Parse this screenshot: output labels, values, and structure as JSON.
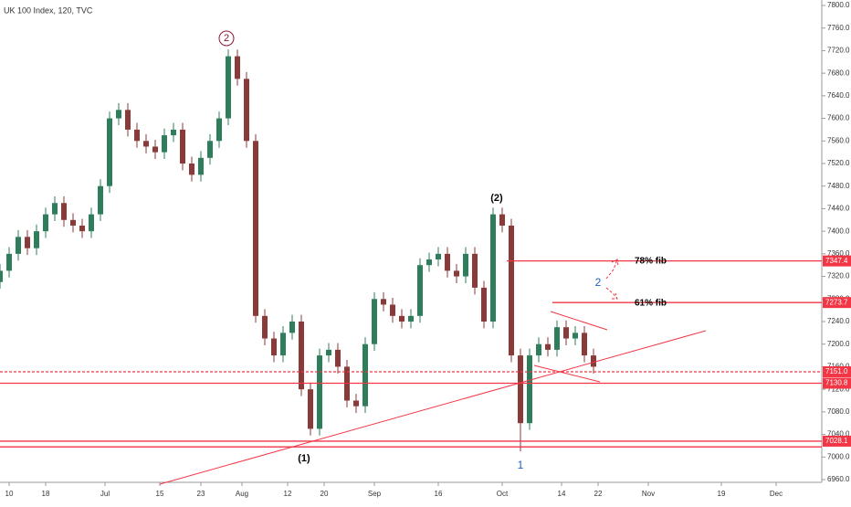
{
  "chart_data": {
    "type": "candlestick",
    "title": "UK 100 Index, 120, TVC",
    "x": [
      0,
      2,
      4,
      6,
      8,
      10,
      12,
      14,
      16,
      18,
      20,
      22,
      24,
      26,
      28,
      30,
      32,
      34,
      36,
      38,
      40,
      42,
      44,
      46,
      48,
      50,
      52,
      54,
      56,
      58,
      60,
      62,
      64,
      66,
      68,
      70,
      72,
      74,
      76,
      78,
      80,
      82,
      84,
      86,
      88,
      90,
      92,
      94,
      96,
      98,
      100,
      102,
      104,
      106,
      108,
      110,
      112,
      114,
      116,
      118,
      120,
      122,
      124,
      126,
      128,
      130
    ],
    "open": [
      7310,
      7330,
      7360,
      7390,
      7370,
      7400,
      7430,
      7450,
      7420,
      7410,
      7400,
      7430,
      7480,
      7600,
      7615,
      7580,
      7560,
      7550,
      7540,
      7570,
      7580,
      7520,
      7500,
      7530,
      7560,
      7600,
      7710,
      7670,
      7560,
      7250,
      7210,
      7180,
      7220,
      7240,
      7120,
      7050,
      7180,
      7190,
      7160,
      7100,
      7090,
      7200,
      7280,
      7270,
      7250,
      7240,
      7250,
      7340,
      7350,
      7360,
      7330,
      7320,
      7360,
      7300,
      7240,
      7430,
      7410,
      7180,
      7060,
      7180,
      7200,
      7190,
      7230,
      7210,
      7220,
      7180
    ],
    "high": [
      7342,
      7372,
      7402,
      7402,
      7412,
      7442,
      7462,
      7462,
      7432,
      7422,
      7442,
      7492,
      7612,
      7627,
      7627,
      7592,
      7572,
      7562,
      7582,
      7592,
      7592,
      7532,
      7542,
      7572,
      7612,
      7722,
      7722,
      7682,
      7572,
      7262,
      7222,
      7232,
      7252,
      7252,
      7132,
      7192,
      7202,
      7202,
      7172,
      7112,
      7212,
      7292,
      7292,
      7282,
      7262,
      7262,
      7352,
      7362,
      7372,
      7372,
      7342,
      7372,
      7372,
      7312,
      7442,
      7442,
      7422,
      7192,
      7192,
      7212,
      7212,
      7242,
      7242,
      7232,
      7232,
      7192
    ],
    "low": [
      7298,
      7318,
      7348,
      7358,
      7358,
      7388,
      7418,
      7408,
      7398,
      7388,
      7388,
      7418,
      7468,
      7588,
      7568,
      7548,
      7538,
      7528,
      7528,
      7558,
      7508,
      7488,
      7488,
      7518,
      7548,
      7588,
      7658,
      7548,
      7238,
      7198,
      7168,
      7168,
      7208,
      7108,
      7038,
      7038,
      7168,
      7148,
      7088,
      7078,
      7078,
      7188,
      7258,
      7238,
      7228,
      7228,
      7238,
      7328,
      7338,
      7318,
      7308,
      7308,
      7288,
      7228,
      7228,
      7398,
      7168,
      7010,
      7048,
      7168,
      7178,
      7178,
      7198,
      7198,
      7168,
      7148
    ],
    "close": [
      7330,
      7360,
      7390,
      7370,
      7400,
      7430,
      7450,
      7420,
      7410,
      7400,
      7430,
      7480,
      7600,
      7615,
      7580,
      7560,
      7550,
      7540,
      7570,
      7580,
      7520,
      7500,
      7530,
      7560,
      7600,
      7710,
      7670,
      7560,
      7250,
      7210,
      7180,
      7220,
      7240,
      7120,
      7050,
      7180,
      7190,
      7160,
      7100,
      7090,
      7200,
      7280,
      7270,
      7250,
      7240,
      7250,
      7340,
      7350,
      7360,
      7330,
      7320,
      7360,
      7300,
      7240,
      7430,
      7410,
      7180,
      7060,
      7180,
      7200,
      7190,
      7230,
      7210,
      7220,
      7180,
      7160
    ],
    "up_color": "#2e7d5b",
    "down_color": "#8b3a3a",
    "xlim": [
      0,
      180
    ],
    "xticks": [
      {
        "value": 2,
        "label": "10"
      },
      {
        "value": 10,
        "label": "18"
      },
      {
        "value": 23,
        "label": "Jul"
      },
      {
        "value": 35,
        "label": "15"
      },
      {
        "value": 44,
        "label": "23"
      },
      {
        "value": 53,
        "label": "Aug"
      },
      {
        "value": 63,
        "label": "12"
      },
      {
        "value": 71,
        "label": "20"
      },
      {
        "value": 82,
        "label": "Sep"
      },
      {
        "value": 96,
        "label": "16"
      },
      {
        "value": 110,
        "label": "Oct"
      },
      {
        "value": 123,
        "label": "14"
      },
      {
        "value": 131,
        "label": "22"
      },
      {
        "value": 142,
        "label": "Nov"
      },
      {
        "value": 158,
        "label": "19"
      },
      {
        "value": 170,
        "label": "Dec"
      }
    ],
    "ylim": [
      6960,
      7800
    ],
    "yticks": [
      {
        "value": 6960,
        "label": "6960.0"
      },
      {
        "value": 7000,
        "label": "7000.0"
      },
      {
        "value": 7040,
        "label": "7040.0"
      },
      {
        "value": 7080,
        "label": "7080.0"
      },
      {
        "value": 7120,
        "label": "7120.0"
      },
      {
        "value": 7160,
        "label": "7160.0"
      },
      {
        "value": 7200,
        "label": "7200.0"
      },
      {
        "value": 7240,
        "label": "7240.0"
      },
      {
        "value": 7280,
        "label": "7280.0"
      },
      {
        "value": 7320,
        "label": "7320.0"
      },
      {
        "value": 7360,
        "label": "7360.0"
      },
      {
        "value": 7400,
        "label": "7400.0"
      },
      {
        "value": 7440,
        "label": "7440.0"
      },
      {
        "value": 7480,
        "label": "7480.0"
      },
      {
        "value": 7520,
        "label": "7520.0"
      },
      {
        "value": 7560,
        "label": "7560.0"
      },
      {
        "value": 7600,
        "label": "7600.0"
      },
      {
        "value": 7640,
        "label": "7640.0"
      },
      {
        "value": 7680,
        "label": "7680.0"
      },
      {
        "value": 7720,
        "label": "7720.0"
      },
      {
        "value": 7760,
        "label": "7760.0"
      },
      {
        "value": 7800,
        "label": "7800.0"
      }
    ],
    "levels": [
      {
        "value": 7347.4,
        "x": 111,
        "dashed": false
      },
      {
        "value": 7273.7,
        "x": 121,
        "dashed": false
      },
      {
        "value": 7151,
        "label": "7151.0",
        "x": 0,
        "dashed": true
      },
      {
        "value": 7130.8,
        "x": 0,
        "dashed": false
      },
      {
        "value": 7028.1,
        "x": 0,
        "dashed": false
      },
      {
        "value": 7018,
        "x": 0,
        "dashed": false
      }
    ],
    "level_color": "#f23645",
    "annotations": [
      "2",
      "(2)",
      "(1)",
      "1",
      "2",
      "78% fib",
      "61% fib"
    ]
  }
}
